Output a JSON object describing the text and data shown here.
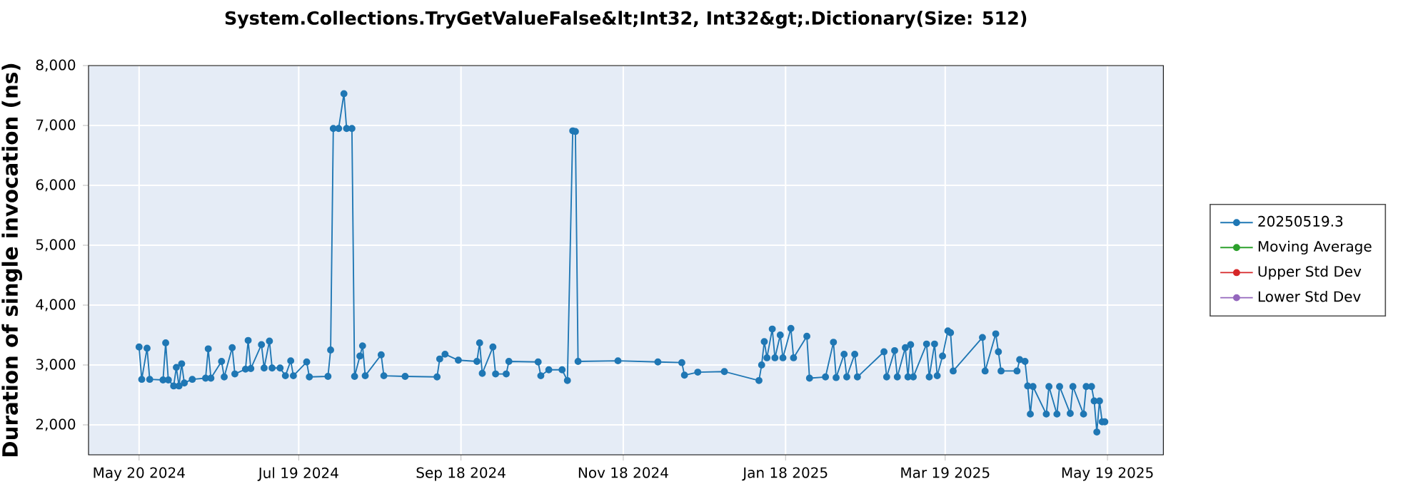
{
  "chart_data": {
    "type": "line",
    "title": "System.Collections.TryGetValueFalse&lt;Int32, Int32&gt;.Dictionary(Size: 512)",
    "ylabel": "Duration of single invocation (ns)",
    "x": [
      "2024-05-20",
      "2024-05-21",
      "2024-05-23",
      "2024-05-24",
      "2024-05-29",
      "2024-05-30",
      "2024-05-31",
      "2024-06-02",
      "2024-06-03",
      "2024-06-04",
      "2024-06-05",
      "2024-06-06",
      "2024-06-09",
      "2024-06-14",
      "2024-06-15",
      "2024-06-16",
      "2024-06-20",
      "2024-06-21",
      "2024-06-24",
      "2024-06-25",
      "2024-06-29",
      "2024-06-30",
      "2024-07-01",
      "2024-07-05",
      "2024-07-06",
      "2024-07-08",
      "2024-07-09",
      "2024-07-12",
      "2024-07-14",
      "2024-07-16",
      "2024-07-17",
      "2024-07-22",
      "2024-07-23",
      "2024-07-30",
      "2024-07-31",
      "2024-08-01",
      "2024-08-03",
      "2024-08-05",
      "2024-08-06",
      "2024-08-08",
      "2024-08-09",
      "2024-08-11",
      "2024-08-12",
      "2024-08-13",
      "2024-08-19",
      "2024-08-20",
      "2024-08-28",
      "2024-09-09",
      "2024-09-10",
      "2024-09-12",
      "2024-09-17",
      "2024-09-24",
      "2024-09-25",
      "2024-09-26",
      "2024-09-30",
      "2024-10-01",
      "2024-10-05",
      "2024-10-06",
      "2024-10-17",
      "2024-10-18",
      "2024-10-21",
      "2024-10-26",
      "2024-10-28",
      "2024-10-30",
      "2024-10-31",
      "2024-11-01",
      "2024-11-16",
      "2024-12-01",
      "2024-12-10",
      "2024-12-11",
      "2024-12-16",
      "2024-12-26",
      "2025-01-08",
      "2025-01-09",
      "2025-01-10",
      "2025-01-11",
      "2025-01-13",
      "2025-01-14",
      "2025-01-16",
      "2025-01-17",
      "2025-01-20",
      "2025-01-21",
      "2025-01-26",
      "2025-01-27",
      "2025-02-02",
      "2025-02-05",
      "2025-02-06",
      "2025-02-09",
      "2025-02-10",
      "2025-02-13",
      "2025-02-14",
      "2025-02-24",
      "2025-02-25",
      "2025-02-28",
      "2025-03-01",
      "2025-03-04",
      "2025-03-05",
      "2025-03-06",
      "2025-03-07",
      "2025-03-12",
      "2025-03-13",
      "2025-03-15",
      "2025-03-16",
      "2025-03-18",
      "2025-03-20",
      "2025-03-21",
      "2025-03-22",
      "2025-04-02",
      "2025-04-03",
      "2025-04-07",
      "2025-04-08",
      "2025-04-09",
      "2025-04-15",
      "2025-04-16",
      "2025-04-18",
      "2025-04-19",
      "2025-04-20",
      "2025-04-21",
      "2025-04-26",
      "2025-04-27",
      "2025-04-30",
      "2025-05-01",
      "2025-05-05",
      "2025-05-06",
      "2025-05-10",
      "2025-05-11",
      "2025-05-13",
      "2025-05-14",
      "2025-05-15",
      "2025-05-16",
      "2025-05-17",
      "2025-05-18"
    ],
    "series": [
      {
        "name": "20250519.3",
        "color": "#1f77b4",
        "values": [
          3300,
          2760,
          3280,
          2760,
          2750,
          3370,
          2750,
          2650,
          2960,
          2650,
          3020,
          2700,
          2760,
          2780,
          3270,
          2780,
          3060,
          2800,
          3290,
          2850,
          2930,
          3410,
          2940,
          3340,
          2950,
          3400,
          2950,
          2950,
          2820,
          3070,
          2820,
          3050,
          2800,
          2810,
          3250,
          6950,
          6950,
          7530,
          6950,
          6950,
          2810,
          3150,
          3320,
          2820,
          3170,
          2820,
          2810,
          2800,
          3100,
          3180,
          3080,
          3060,
          3370,
          2860,
          3300,
          2850,
          2850,
          3060,
          3050,
          2820,
          2920,
          2920,
          2740,
          6910,
          6900,
          3060,
          3070,
          3050,
          3040,
          2830,
          2880,
          2890,
          2740,
          3000,
          3390,
          3120,
          3600,
          3120,
          3500,
          3120,
          3610,
          3120,
          3480,
          2780,
          2800,
          3380,
          2790,
          3180,
          2800,
          3180,
          2800,
          3220,
          2800,
          3240,
          2800,
          3290,
          2800,
          3340,
          2800,
          3350,
          2800,
          3350,
          2820,
          3150,
          3570,
          3540,
          2900,
          3460,
          2900,
          3520,
          3220,
          2900,
          2900,
          3090,
          3060,
          2650,
          2180,
          2640,
          2180,
          2640,
          2180,
          2640,
          2190,
          2640,
          2180,
          2640,
          2640,
          2400,
          1880,
          2400,
          2050,
          2050
        ]
      },
      {
        "name": "Moving Average",
        "color": "#2ca02c",
        "values": [
          null,
          null,
          null,
          null,
          null,
          null,
          null,
          null,
          null,
          null,
          null,
          null,
          null,
          null,
          null,
          null,
          null,
          null,
          null,
          null,
          null,
          null,
          null,
          null,
          null,
          null,
          null,
          null,
          null,
          null,
          null,
          null,
          null,
          null,
          null,
          null,
          null,
          null,
          null,
          null,
          null,
          null,
          null,
          null,
          null,
          null,
          null,
          null,
          null,
          null,
          null,
          null,
          null,
          null,
          null,
          null,
          null,
          null,
          null,
          null,
          null,
          null,
          null,
          null,
          null,
          null,
          null,
          null,
          null,
          null,
          null,
          null,
          null,
          null,
          null,
          null,
          null,
          null,
          null,
          null,
          null,
          null,
          null,
          null,
          null,
          null,
          null,
          null,
          null,
          null,
          null,
          null,
          null,
          null,
          null,
          null,
          null,
          null,
          null,
          null,
          null,
          null,
          null,
          null,
          null,
          null,
          null,
          null,
          null,
          null,
          null,
          null,
          null,
          null,
          null,
          null,
          null,
          null,
          null,
          null,
          null,
          null,
          null,
          null,
          null,
          null,
          null,
          null,
          null,
          null,
          null,
          null
        ]
      },
      {
        "name": "Upper Std Dev",
        "color": "#d62728",
        "values": [
          null,
          null,
          null,
          null,
          null,
          null,
          null,
          null,
          null,
          null,
          null,
          null,
          null,
          null,
          null,
          null,
          null,
          null,
          null,
          null,
          null,
          null,
          null,
          null,
          null,
          null,
          null,
          null,
          null,
          null,
          null,
          null,
          null,
          null,
          null,
          null,
          null,
          null,
          null,
          null,
          null,
          null,
          null,
          null,
          null,
          null,
          null,
          null,
          null,
          null,
          null,
          null,
          null,
          null,
          null,
          null,
          null,
          null,
          null,
          null,
          null,
          null,
          null,
          null,
          null,
          null,
          null,
          null,
          null,
          null,
          null,
          null,
          null,
          null,
          null,
          null,
          null,
          null,
          null,
          null,
          null,
          null,
          null,
          null,
          null,
          null,
          null,
          null,
          null,
          null,
          null,
          null,
          null,
          null,
          null,
          null,
          null,
          null,
          null,
          null,
          null,
          null,
          null,
          null,
          null,
          null,
          null,
          null,
          null,
          null,
          null,
          null,
          null,
          null,
          null,
          null,
          null,
          null,
          null,
          null,
          null,
          null,
          null,
          null,
          null,
          null,
          null,
          null,
          null,
          null,
          null,
          null
        ]
      },
      {
        "name": "Lower Std Dev",
        "color": "#9467bd",
        "values": [
          null,
          null,
          null,
          null,
          null,
          null,
          null,
          null,
          null,
          null,
          null,
          null,
          null,
          null,
          null,
          null,
          null,
          null,
          null,
          null,
          null,
          null,
          null,
          null,
          null,
          null,
          null,
          null,
          null,
          null,
          null,
          null,
          null,
          null,
          null,
          null,
          null,
          null,
          null,
          null,
          null,
          null,
          null,
          null,
          null,
          null,
          null,
          null,
          null,
          null,
          null,
          null,
          null,
          null,
          null,
          null,
          null,
          null,
          null,
          null,
          null,
          null,
          null,
          null,
          null,
          null,
          null,
          null,
          null,
          null,
          null,
          null,
          null,
          null,
          null,
          null,
          null,
          null,
          null,
          null,
          null,
          null,
          null,
          null,
          null,
          null,
          null,
          null,
          null,
          null,
          null,
          null,
          null,
          null,
          null,
          null,
          null,
          null,
          null,
          null,
          null,
          null,
          null,
          null,
          null,
          null,
          null,
          null,
          null,
          null,
          null,
          null,
          null,
          null,
          null,
          null,
          null,
          null,
          null,
          null,
          null,
          null,
          null,
          null,
          null,
          null,
          null,
          null,
          null,
          null,
          null,
          null
        ]
      }
    ],
    "xlim": [
      "2024-05-01",
      "2025-06-09"
    ],
    "xticks": [
      {
        "value": "2024-05-20",
        "label": "May 20 2024"
      },
      {
        "value": "2024-07-19",
        "label": "Jul 19 2024"
      },
      {
        "value": "2024-09-18",
        "label": "Sep 18 2024"
      },
      {
        "value": "2024-11-18",
        "label": "Nov 18 2024"
      },
      {
        "value": "2025-01-18",
        "label": "Jan 18 2025"
      },
      {
        "value": "2025-03-19",
        "label": "Mar 19 2025"
      },
      {
        "value": "2025-05-19",
        "label": "May 19 2025"
      }
    ],
    "ylim": [
      1500,
      8000
    ],
    "yticks": [
      {
        "value": 2000,
        "label": "2,000"
      },
      {
        "value": 3000,
        "label": "3,000"
      },
      {
        "value": 4000,
        "label": "4,000"
      },
      {
        "value": 5000,
        "label": "5,000"
      },
      {
        "value": 6000,
        "label": "6,000"
      },
      {
        "value": 7000,
        "label": "7,000"
      },
      {
        "value": 8000,
        "label": "8,000"
      }
    ],
    "grid": true,
    "legend": "right",
    "marker": "circle",
    "line_style": "solid"
  }
}
